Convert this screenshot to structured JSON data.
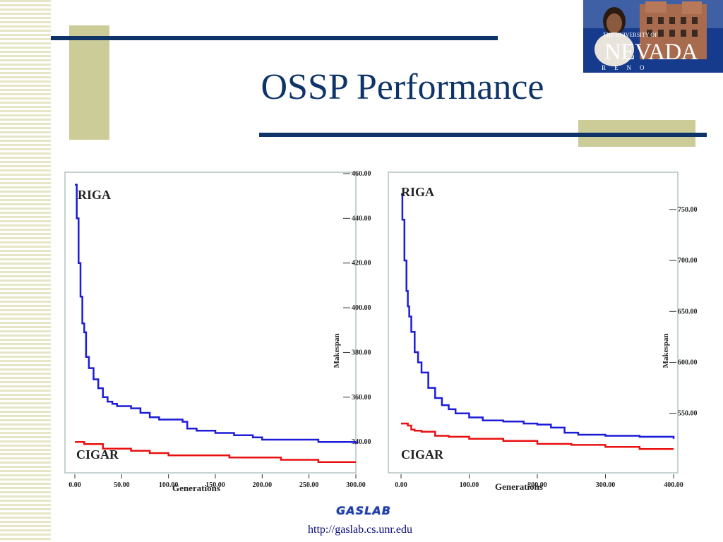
{
  "slide": {
    "title": "OSSP Performance",
    "footer_logo": "GASLAB",
    "footer_url": "http://gaslab.cs.unr.edu"
  },
  "logo": {
    "line1": "THE UNIVERSITY OF",
    "line2": "NEVADA",
    "line3": "RENO"
  },
  "colors": {
    "navy": "#0f3468",
    "tan": "#cccc99",
    "riga": "#1c1cd8",
    "cigar": "#e81010"
  },
  "chart_data": [
    {
      "type": "line",
      "xlabel": "Generations",
      "ylabel": "Makespan",
      "xlim": [
        0,
        300
      ],
      "ylim": [
        335,
        460
      ],
      "xticks": [
        "0.00",
        "50.00",
        "100.00",
        "150.00",
        "200.00",
        "250.00",
        "300.00"
      ],
      "yticks": [
        "340.00",
        "360.00",
        "380.00",
        "400.00",
        "420.00",
        "440.00",
        "460.00"
      ],
      "series": [
        {
          "name": "RIGA",
          "x": [
            0,
            2,
            4,
            6,
            8,
            10,
            12,
            15,
            20,
            25,
            30,
            35,
            40,
            45,
            50,
            60,
            70,
            80,
            90,
            100,
            115,
            120,
            130,
            150,
            170,
            190,
            200,
            230,
            260,
            280,
            295,
            300
          ],
          "y": [
            455,
            440,
            420,
            405,
            393,
            389,
            378,
            373,
            368,
            364,
            360,
            358,
            357,
            356,
            356,
            355,
            353,
            351,
            350,
            350,
            349,
            346,
            345,
            344,
            343,
            342,
            341,
            341,
            340,
            340,
            340,
            339
          ]
        },
        {
          "name": "CIGAR",
          "x": [
            0,
            5,
            10,
            15,
            25,
            30,
            40,
            50,
            60,
            70,
            80,
            100,
            120,
            150,
            165,
            180,
            200,
            220,
            250,
            260,
            300
          ],
          "y": [
            340,
            340,
            339,
            339,
            339,
            337,
            337,
            337,
            336,
            336,
            335,
            334,
            334,
            334,
            333,
            333,
            333,
            332,
            332,
            331,
            331
          ]
        }
      ]
    },
    {
      "type": "line",
      "xlabel": "Generations",
      "ylabel": "Makespan",
      "xlim": [
        0,
        400
      ],
      "ylim": [
        511,
        770
      ],
      "xticks": [
        "0.00",
        "100.00",
        "200.00",
        "300.00",
        "400.00"
      ],
      "yticks": [
        "550.00",
        "600.00",
        "650.00",
        "700.00",
        "750.00"
      ],
      "series": [
        {
          "name": "RIGA",
          "x": [
            0,
            2,
            5,
            8,
            10,
            12,
            15,
            20,
            25,
            30,
            40,
            50,
            60,
            70,
            80,
            100,
            120,
            150,
            180,
            200,
            220,
            240,
            260,
            300,
            350,
            400
          ],
          "y": [
            765,
            740,
            700,
            670,
            655,
            645,
            630,
            610,
            600,
            590,
            575,
            565,
            558,
            554,
            550,
            546,
            543,
            542,
            540,
            539,
            536,
            531,
            529,
            528,
            527,
            525
          ]
        },
        {
          "name": "CIGAR",
          "x": [
            0,
            5,
            10,
            15,
            20,
            30,
            50,
            70,
            100,
            150,
            200,
            250,
            300,
            350,
            400
          ],
          "y": [
            540,
            540,
            538,
            534,
            533,
            532,
            528,
            527,
            525,
            523,
            520,
            519,
            517,
            515,
            515
          ]
        }
      ]
    }
  ]
}
